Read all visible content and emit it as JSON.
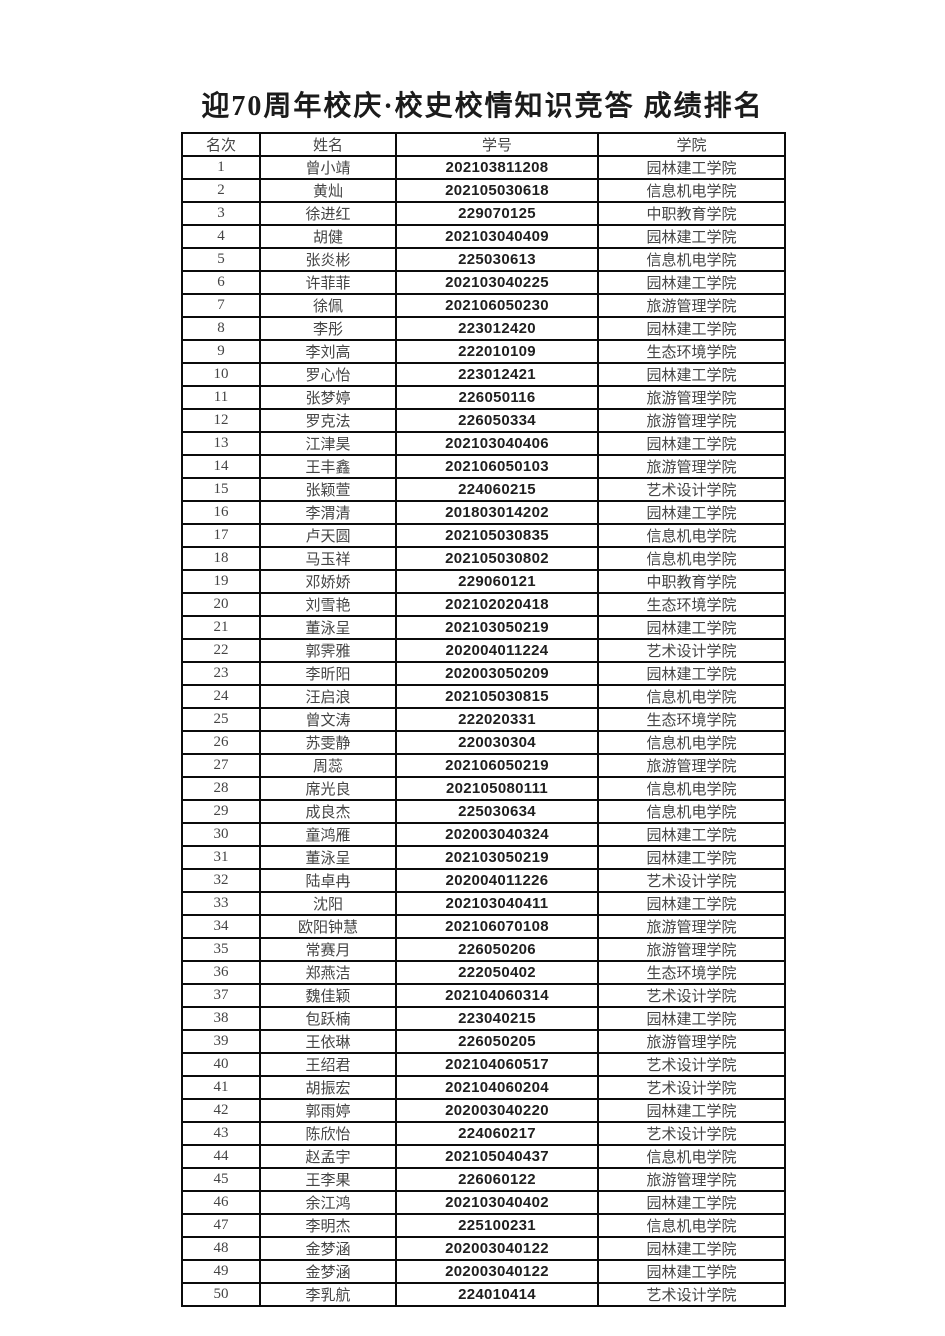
{
  "page": {
    "title": "迎70周年校庆·校史校情知识竞答 成绩排名"
  },
  "table": {
    "headers": [
      "名次",
      "姓名",
      "学号",
      "学院"
    ],
    "rows": [
      {
        "rank": "1",
        "name": "曾小靖",
        "student_id": "202103811208",
        "college": "园林建工学院"
      },
      {
        "rank": "2",
        "name": "黄灿",
        "student_id": "202105030618",
        "college": "信息机电学院"
      },
      {
        "rank": "3",
        "name": "徐进红",
        "student_id": "229070125",
        "college": "中职教育学院"
      },
      {
        "rank": "4",
        "name": "胡健",
        "student_id": "202103040409",
        "college": "园林建工学院"
      },
      {
        "rank": "5",
        "name": "张炎彬",
        "student_id": "225030613",
        "college": "信息机电学院"
      },
      {
        "rank": "6",
        "name": "许菲菲",
        "student_id": "202103040225",
        "college": "园林建工学院"
      },
      {
        "rank": "7",
        "name": "徐佩",
        "student_id": "202106050230",
        "college": "旅游管理学院"
      },
      {
        "rank": "8",
        "name": "李彤",
        "student_id": "223012420",
        "college": "园林建工学院"
      },
      {
        "rank": "9",
        "name": "李刘高",
        "student_id": "222010109",
        "college": "生态环境学院"
      },
      {
        "rank": "10",
        "name": "罗心怡",
        "student_id": "223012421",
        "college": "园林建工学院"
      },
      {
        "rank": "11",
        "name": "张梦婷",
        "student_id": "226050116",
        "college": "旅游管理学院"
      },
      {
        "rank": "12",
        "name": "罗克法",
        "student_id": "226050334",
        "college": "旅游管理学院"
      },
      {
        "rank": "13",
        "name": "江津昊",
        "student_id": "202103040406",
        "college": "园林建工学院"
      },
      {
        "rank": "14",
        "name": "王丰鑫",
        "student_id": "202106050103",
        "college": "旅游管理学院"
      },
      {
        "rank": "15",
        "name": "张颖萱",
        "student_id": "224060215",
        "college": "艺术设计学院"
      },
      {
        "rank": "16",
        "name": "李渭清",
        "student_id": "201803014202",
        "college": "园林建工学院"
      },
      {
        "rank": "17",
        "name": "卢天圆",
        "student_id": "202105030835",
        "college": "信息机电学院"
      },
      {
        "rank": "18",
        "name": "马玉祥",
        "student_id": "202105030802",
        "college": "信息机电学院"
      },
      {
        "rank": "19",
        "name": "邓娇娇",
        "student_id": "229060121",
        "college": "中职教育学院"
      },
      {
        "rank": "20",
        "name": "刘雪艳",
        "student_id": "202102020418",
        "college": "生态环境学院"
      },
      {
        "rank": "21",
        "name": "董泳呈",
        "student_id": "202103050219",
        "college": "园林建工学院"
      },
      {
        "rank": "22",
        "name": "郭霁雅",
        "student_id": "202004011224",
        "college": "艺术设计学院"
      },
      {
        "rank": "23",
        "name": "李昕阳",
        "student_id": "202003050209",
        "college": "园林建工学院"
      },
      {
        "rank": "24",
        "name": "汪启浪",
        "student_id": "202105030815",
        "college": "信息机电学院"
      },
      {
        "rank": "25",
        "name": "曾文涛",
        "student_id": "222020331",
        "college": "生态环境学院"
      },
      {
        "rank": "26",
        "name": "苏雯静",
        "student_id": "220030304",
        "college": "信息机电学院"
      },
      {
        "rank": "27",
        "name": "周蕊",
        "student_id": "202106050219",
        "college": "旅游管理学院"
      },
      {
        "rank": "28",
        "name": "席光良",
        "student_id": "202105080111",
        "college": "信息机电学院"
      },
      {
        "rank": "29",
        "name": "成良杰",
        "student_id": "225030634",
        "college": "信息机电学院"
      },
      {
        "rank": "30",
        "name": "童鸿雁",
        "student_id": "202003040324",
        "college": "园林建工学院"
      },
      {
        "rank": "31",
        "name": "董泳呈",
        "student_id": "202103050219",
        "college": "园林建工学院"
      },
      {
        "rank": "32",
        "name": "陆卓冉",
        "student_id": "202004011226",
        "college": "艺术设计学院"
      },
      {
        "rank": "33",
        "name": "沈阳",
        "student_id": "202103040411",
        "college": "园林建工学院"
      },
      {
        "rank": "34",
        "name": "欧阳钟慧",
        "student_id": "202106070108",
        "college": "旅游管理学院"
      },
      {
        "rank": "35",
        "name": "常赛月",
        "student_id": "226050206",
        "college": "旅游管理学院"
      },
      {
        "rank": "36",
        "name": "郑燕洁",
        "student_id": "222050402",
        "college": "生态环境学院"
      },
      {
        "rank": "37",
        "name": "魏佳颖",
        "student_id": "202104060314",
        "college": "艺术设计学院"
      },
      {
        "rank": "38",
        "name": "包跃楠",
        "student_id": "223040215",
        "college": "园林建工学院"
      },
      {
        "rank": "39",
        "name": "王依琳",
        "student_id": "226050205",
        "college": "旅游管理学院"
      },
      {
        "rank": "40",
        "name": "王绍君",
        "student_id": "202104060517",
        "college": "艺术设计学院"
      },
      {
        "rank": "41",
        "name": "胡振宏",
        "student_id": "202104060204",
        "college": "艺术设计学院"
      },
      {
        "rank": "42",
        "name": "郭雨婷",
        "student_id": "202003040220",
        "college": "园林建工学院"
      },
      {
        "rank": "43",
        "name": "陈欣怡",
        "student_id": "224060217",
        "college": "艺术设计学院"
      },
      {
        "rank": "44",
        "name": "赵孟宇",
        "student_id": "202105040437",
        "college": "信息机电学院"
      },
      {
        "rank": "45",
        "name": "王李果",
        "student_id": "226060122",
        "college": "旅游管理学院"
      },
      {
        "rank": "46",
        "name": "余江鸿",
        "student_id": "202103040402",
        "college": "园林建工学院"
      },
      {
        "rank": "47",
        "name": "李明杰",
        "student_id": "225100231",
        "college": "信息机电学院"
      },
      {
        "rank": "48",
        "name": "金梦涵",
        "student_id": "202003040122",
        "college": "园林建工学院"
      },
      {
        "rank": "49",
        "name": "金梦涵",
        "student_id": "202003040122",
        "college": "园林建工学院"
      },
      {
        "rank": "50",
        "name": "李乳航",
        "student_id": "224010414",
        "college": "艺术设计学院"
      }
    ]
  }
}
